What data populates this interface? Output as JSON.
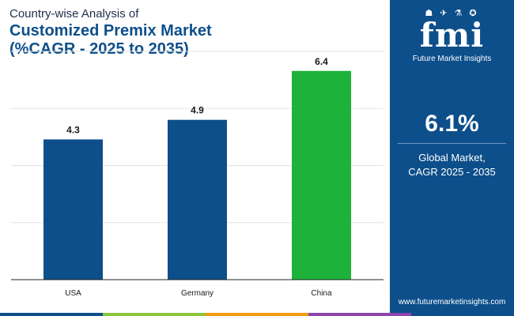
{
  "title": {
    "line1": "Country-wise Analysis of",
    "line2": "Customized Premix Market",
    "line3": "(%CAGR - 2025 to 2035)"
  },
  "chart_data": {
    "type": "bar",
    "categories": [
      "USA",
      "Germany",
      "China"
    ],
    "values": [
      4.3,
      4.9,
      6.4
    ],
    "bar_colors": [
      "#0d4f8b",
      "#0d4f8b",
      "#1db33a"
    ],
    "ylim": [
      0,
      7
    ],
    "grid": true,
    "xlabel": "",
    "ylabel": ""
  },
  "side_panel": {
    "logo_icons": "☗ ✈ ⚗ ✪",
    "logo_text": "fmi",
    "logo_tagline": "Future Market Insights",
    "stat_value": "6.1%",
    "stat_label_line1": "Global Market,",
    "stat_label_line2": "CAGR 2025 - 2035",
    "website": "www.futuremarketinsights.com"
  },
  "colors": {
    "primary": "#0d4f8b",
    "accent": "#1db33a",
    "strip": [
      "#0d4f8b",
      "#8cc63f",
      "#f39c12",
      "#8e44ad",
      "#0d4f8b"
    ]
  }
}
